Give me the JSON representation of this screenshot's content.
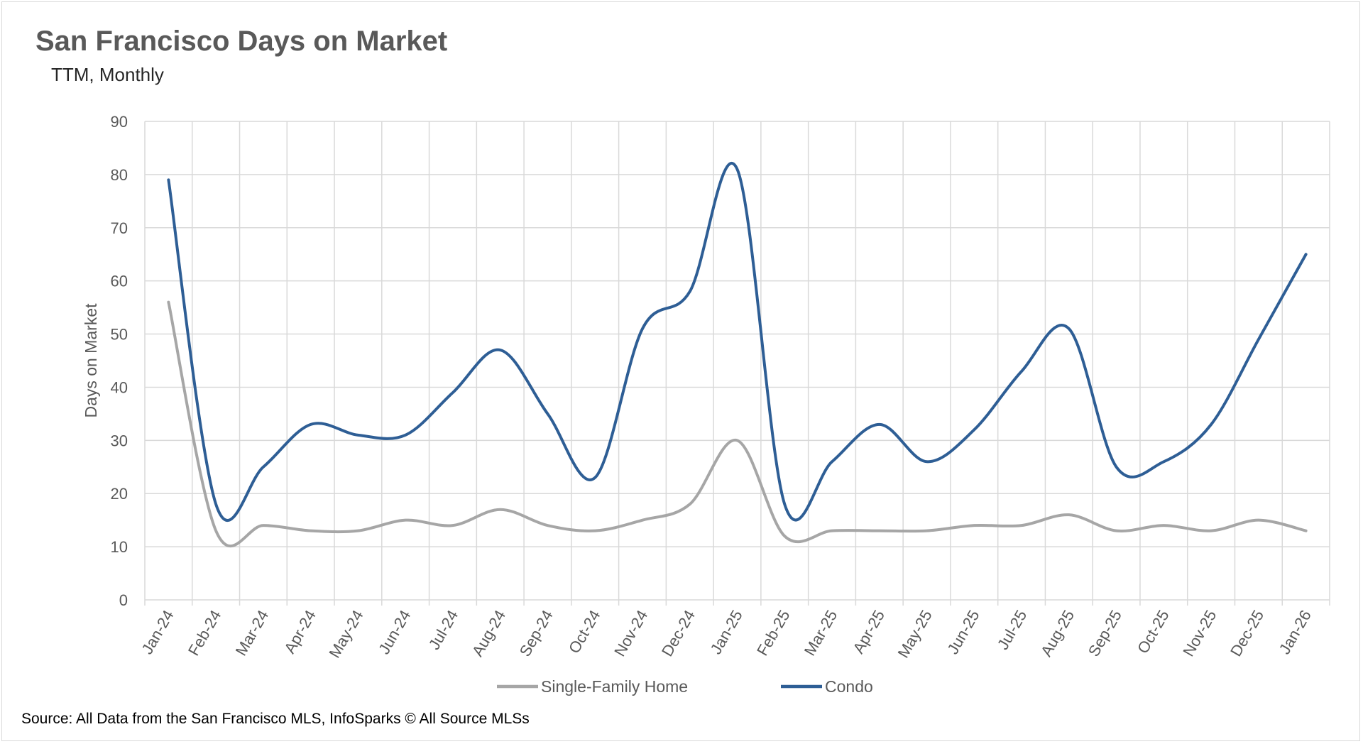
{
  "chart_data": {
    "type": "line",
    "title": "San Francisco Days on Market",
    "subtitle": "TTM, Monthly",
    "xlabel": "",
    "ylabel": "Days on Market",
    "ylim": [
      0,
      90
    ],
    "yticks": [
      0,
      10,
      20,
      30,
      40,
      50,
      60,
      70,
      80,
      90
    ],
    "grid": true,
    "smooth": true,
    "legend_position": "bottom",
    "categories": [
      "Jan-24",
      "Feb-24",
      "Mar-24",
      "Apr-24",
      "May-24",
      "Jun-24",
      "Jul-24",
      "Aug-24",
      "Sep-24",
      "Oct-24",
      "Nov-24",
      "Dec-24",
      "Jan-25",
      "Feb-25",
      "Mar-25",
      "Apr-25",
      "May-25",
      "Jun-25",
      "Jul-25",
      "Aug-25",
      "Sep-25",
      "Oct-25",
      "Nov-25",
      "Dec-25",
      "Jan-26"
    ],
    "series": [
      {
        "name": "Single-Family Home",
        "color": "#a6a6a6",
        "values": [
          56,
          13,
          14,
          13,
          13,
          15,
          14,
          17,
          14,
          13,
          15,
          18,
          30,
          12,
          13,
          13,
          13,
          14,
          14,
          16,
          13,
          14,
          13,
          15,
          13
        ]
      },
      {
        "name": "Condo",
        "color": "#2e5e95",
        "values": [
          79,
          18,
          25,
          33,
          31,
          31,
          39,
          47,
          35,
          23,
          51,
          58,
          81,
          18,
          26,
          33,
          26,
          32,
          43,
          51,
          25,
          26,
          33,
          49,
          65
        ]
      }
    ],
    "source": "Source: All Data from the San Francisco MLS, InfoSparks © All Source MLSs"
  }
}
